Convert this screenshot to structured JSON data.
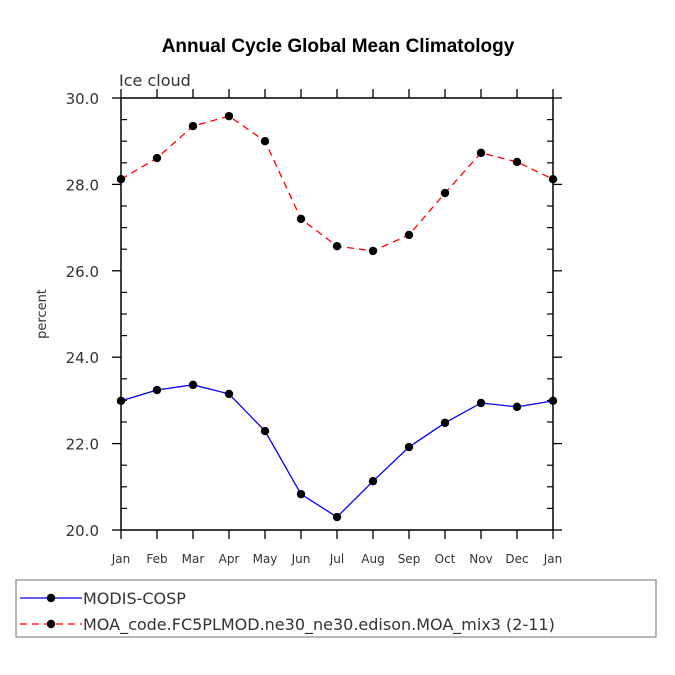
{
  "chart_data": {
    "type": "line",
    "title": "Annual Cycle Global Mean Climatology",
    "subtitle": "Ice cloud",
    "xlabel": "",
    "ylabel": "percent",
    "categories": [
      "Jan",
      "Feb",
      "Mar",
      "Apr",
      "May",
      "Jun",
      "Jul",
      "Aug",
      "Sep",
      "Oct",
      "Nov",
      "Dec",
      "Jan"
    ],
    "ylim": [
      20.0,
      30.0
    ],
    "yticks": [
      "20.0",
      "22.0",
      "24.0",
      "26.0",
      "28.0",
      "30.0"
    ],
    "ytick_values": [
      20,
      22,
      24,
      26,
      28,
      30
    ],
    "grid": false,
    "legend_position": "bottom",
    "series": [
      {
        "name": "MODIS-COSP",
        "color": "#0000ff",
        "dash": "solid",
        "values": [
          22.99,
          23.24,
          23.36,
          23.15,
          22.29,
          20.83,
          20.3,
          21.13,
          21.92,
          22.48,
          22.94,
          22.85,
          22.99
        ]
      },
      {
        "name": "MOA_code.FC5PLMOD.ne30_ne30.edison.MOA_mix3 (2-11)",
        "color": "#ff0000",
        "dash": "dashed",
        "values": [
          28.12,
          28.61,
          29.35,
          29.58,
          29.0,
          27.2,
          26.57,
          26.46,
          26.83,
          27.8,
          28.73,
          28.52,
          28.12
        ]
      }
    ]
  }
}
